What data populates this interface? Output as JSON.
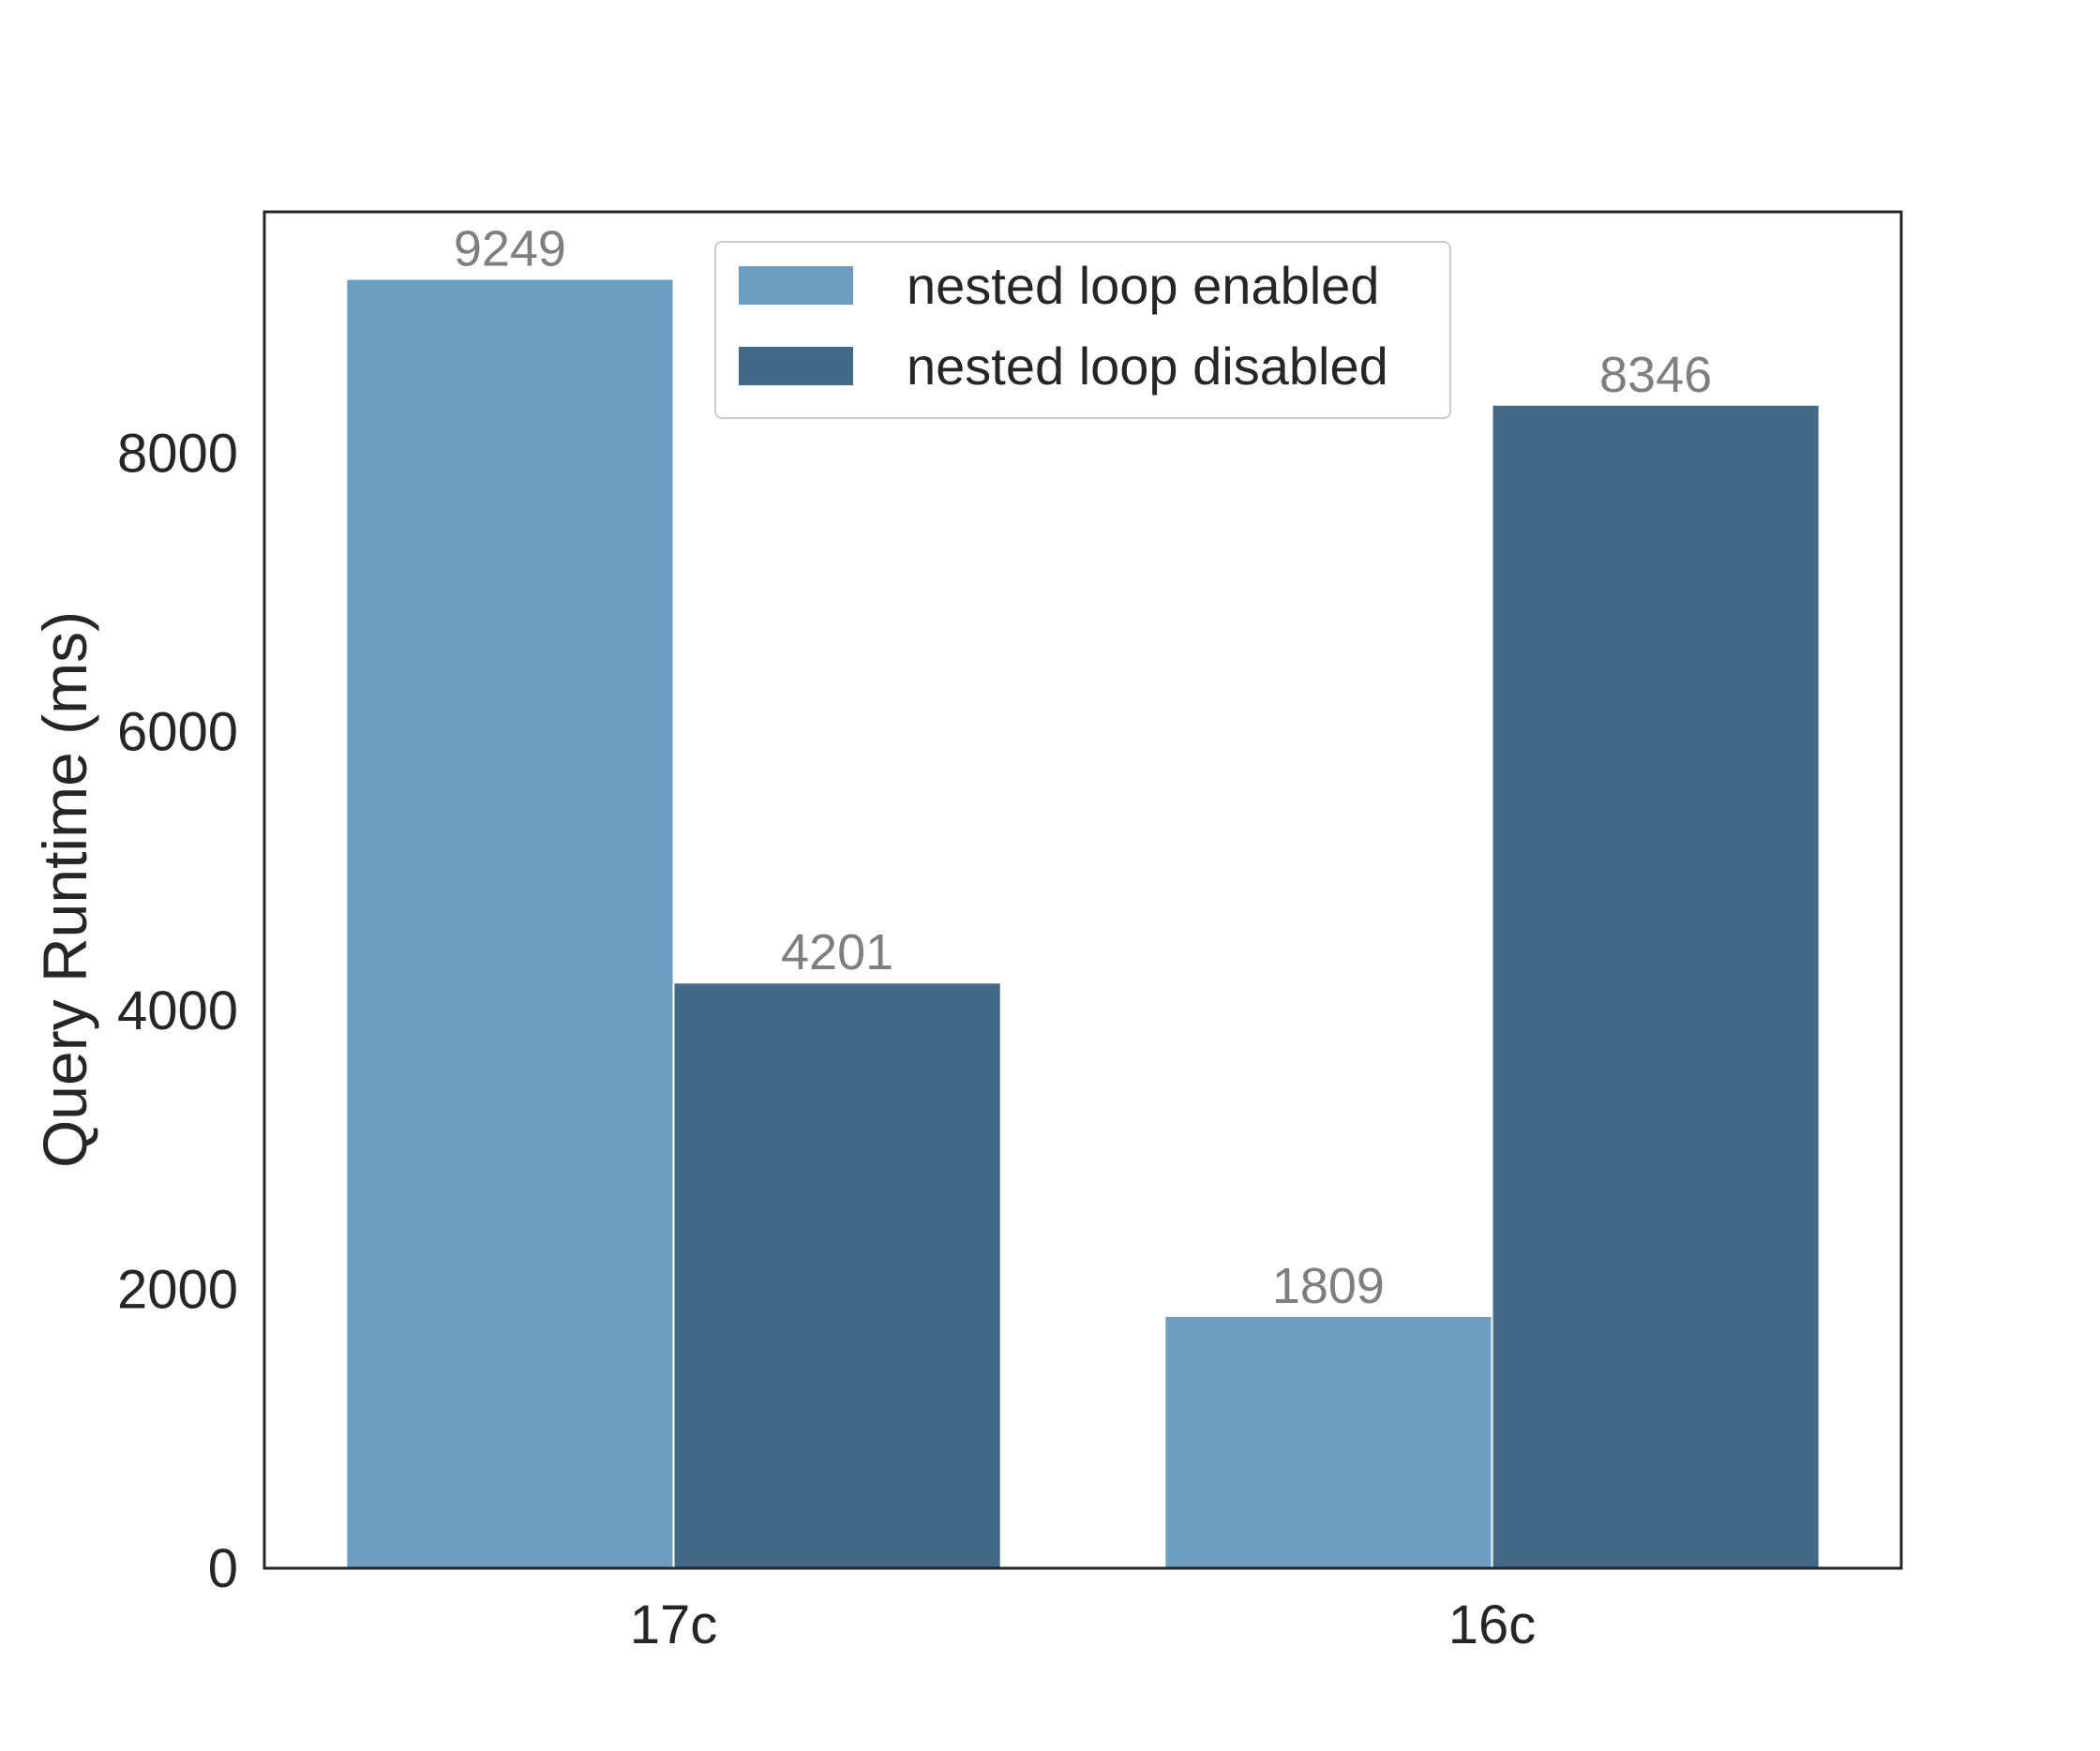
{
  "chart_data": {
    "type": "bar",
    "categories": [
      "17c",
      "16c"
    ],
    "series": [
      {
        "name": "nested loop enabled",
        "values": [
          9249,
          1809
        ],
        "color": "#6d9dc0"
      },
      {
        "name": "nested loop disabled",
        "values": [
          4201,
          8346
        ],
        "color": "#426985"
      }
    ],
    "title": "",
    "xlabel": "",
    "ylabel": "Query Runtime (ms)",
    "ylim": [
      0,
      9730
    ],
    "yticks": [
      0,
      2000,
      4000,
      6000,
      8000
    ],
    "grid": false,
    "legend_position": "top-center",
    "data_labels": true
  }
}
